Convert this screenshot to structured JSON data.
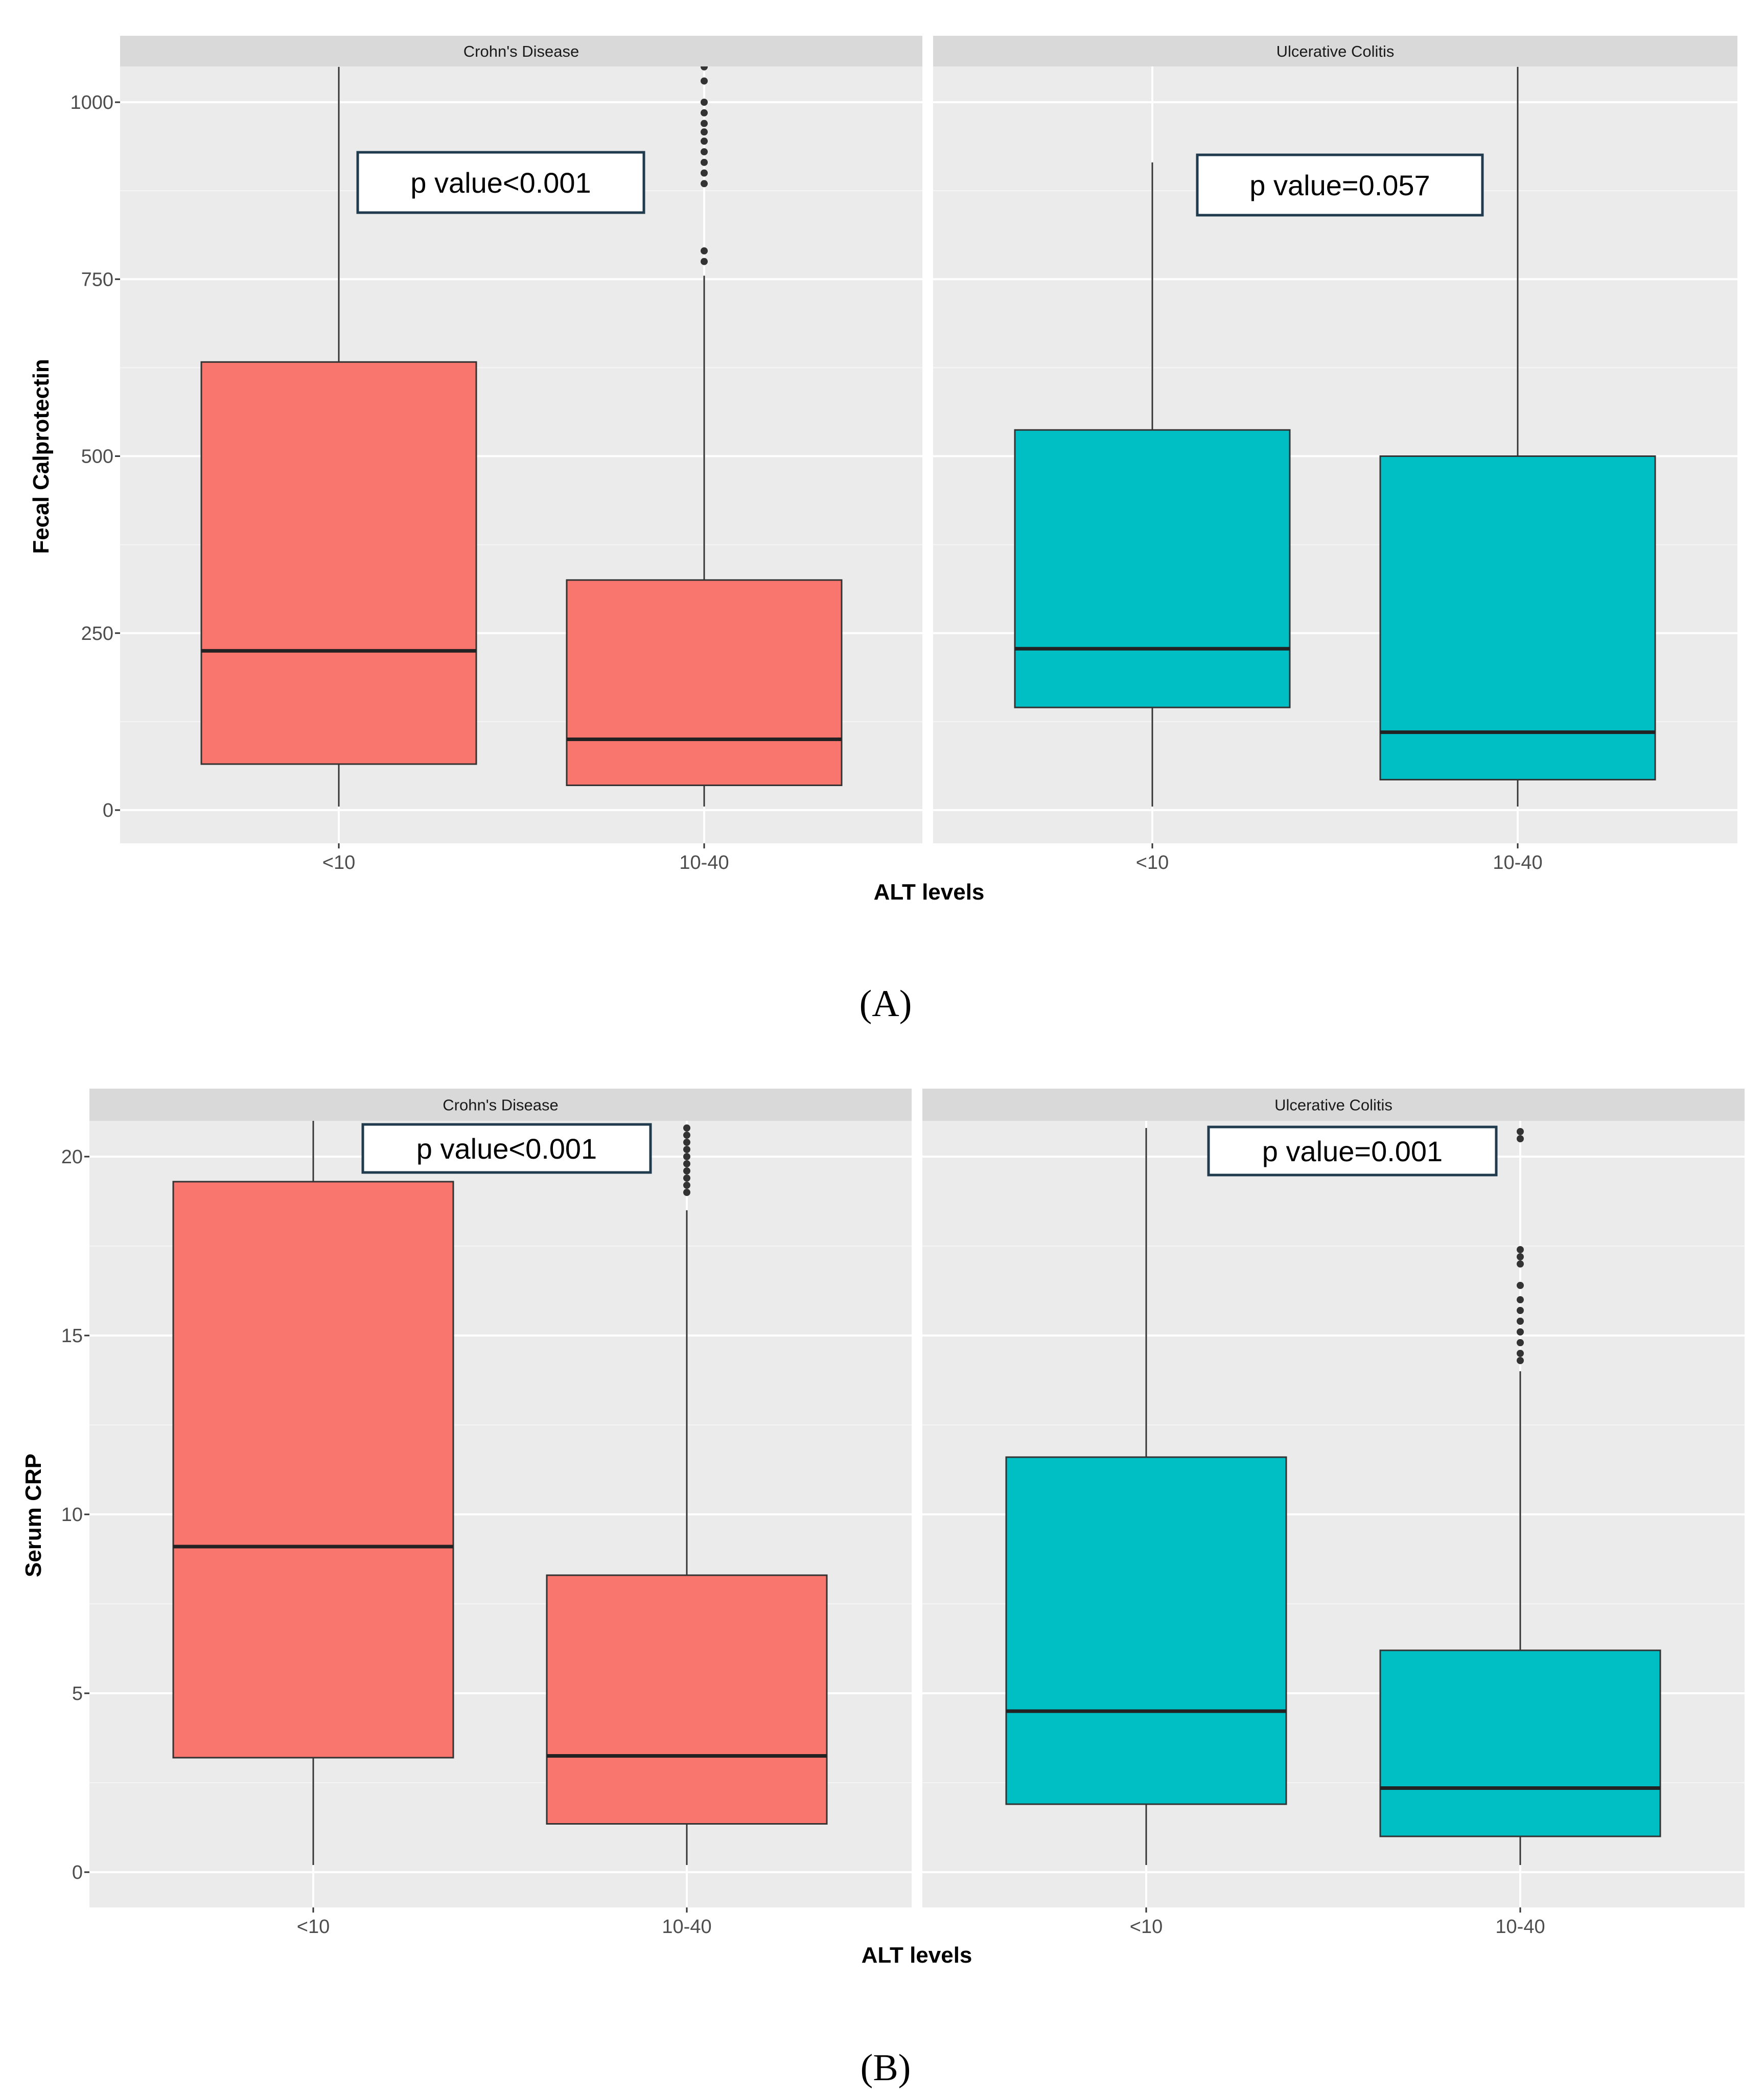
{
  "chart_data": [
    {
      "type": "boxplot",
      "panel_label": "(A)",
      "ylabel": "Fecal Calprotectin",
      "xlabel": "ALT levels",
      "ylim": [
        -50,
        1050
      ],
      "yticks": [
        0,
        250,
        500,
        750,
        1000
      ],
      "ytick_labels": [
        "0",
        "250",
        "500",
        "750",
        "1000"
      ],
      "categories": [
        "<10",
        "10-40"
      ],
      "facets": [
        {
          "strip": "Crohn's Disease",
          "color": "#F8766D",
          "annotation": "p value<0.001",
          "boxes": [
            {
              "category": "<10",
              "lower_whisker": 5,
              "q1": 65,
              "median": 225,
              "q3": 633,
              "upper_whisker": 1050,
              "outliers": []
            },
            {
              "category": "10-40",
              "lower_whisker": 5,
              "q1": 35,
              "median": 100,
              "q3": 325,
              "upper_whisker": 755,
              "outliers": [
                775,
                790,
                885,
                900,
                915,
                930,
                945,
                958,
                970,
                985,
                1000,
                1030,
                1050
              ]
            }
          ]
        },
        {
          "strip": "Ulcerative Colitis",
          "color": "#00BFC4",
          "annotation": "p value=0.057",
          "boxes": [
            {
              "category": "<10",
              "lower_whisker": 5,
              "q1": 145,
              "median": 228,
              "q3": 537,
              "upper_whisker": 915,
              "outliers": []
            },
            {
              "category": "10-40",
              "lower_whisker": 5,
              "q1": 43,
              "median": 110,
              "q3": 500,
              "upper_whisker": 1050,
              "outliers": []
            }
          ]
        }
      ]
    },
    {
      "type": "boxplot",
      "panel_label": "(B)",
      "ylabel": "Serum CRP",
      "xlabel": "ALT levels",
      "ylim": [
        -1,
        21
      ],
      "yticks": [
        0,
        5,
        10,
        15,
        20
      ],
      "ytick_labels": [
        "0",
        "5",
        "10",
        "15",
        "20"
      ],
      "categories": [
        "<10",
        "10-40"
      ],
      "facets": [
        {
          "strip": "Crohn's Disease",
          "color": "#F8766D",
          "annotation": "p value<0.001",
          "boxes": [
            {
              "category": "<10",
              "lower_whisker": 0.2,
              "q1": 3.2,
              "median": 9.1,
              "q3": 19.3,
              "upper_whisker": 21,
              "outliers": []
            },
            {
              "category": "10-40",
              "lower_whisker": 0.2,
              "q1": 1.35,
              "median": 3.25,
              "q3": 8.3,
              "upper_whisker": 18.5,
              "outliers": [
                19.0,
                19.2,
                19.4,
                19.6,
                19.8,
                20.0,
                20.2,
                20.4,
                20.6,
                20.8
              ]
            }
          ]
        },
        {
          "strip": "Ulcerative Colitis",
          "color": "#00BFC4",
          "annotation": "p value=0.001",
          "boxes": [
            {
              "category": "<10",
              "lower_whisker": 0.2,
              "q1": 1.9,
              "median": 4.5,
              "q3": 11.6,
              "upper_whisker": 20.8,
              "outliers": []
            },
            {
              "category": "10-40",
              "lower_whisker": 0.2,
              "q1": 1.0,
              "median": 2.35,
              "q3": 6.2,
              "upper_whisker": 14.0,
              "outliers": [
                14.3,
                14.5,
                14.8,
                15.1,
                15.4,
                15.7,
                16.0,
                16.4,
                17.0,
                17.2,
                17.4,
                20.5,
                20.7
              ]
            }
          ]
        }
      ]
    }
  ]
}
